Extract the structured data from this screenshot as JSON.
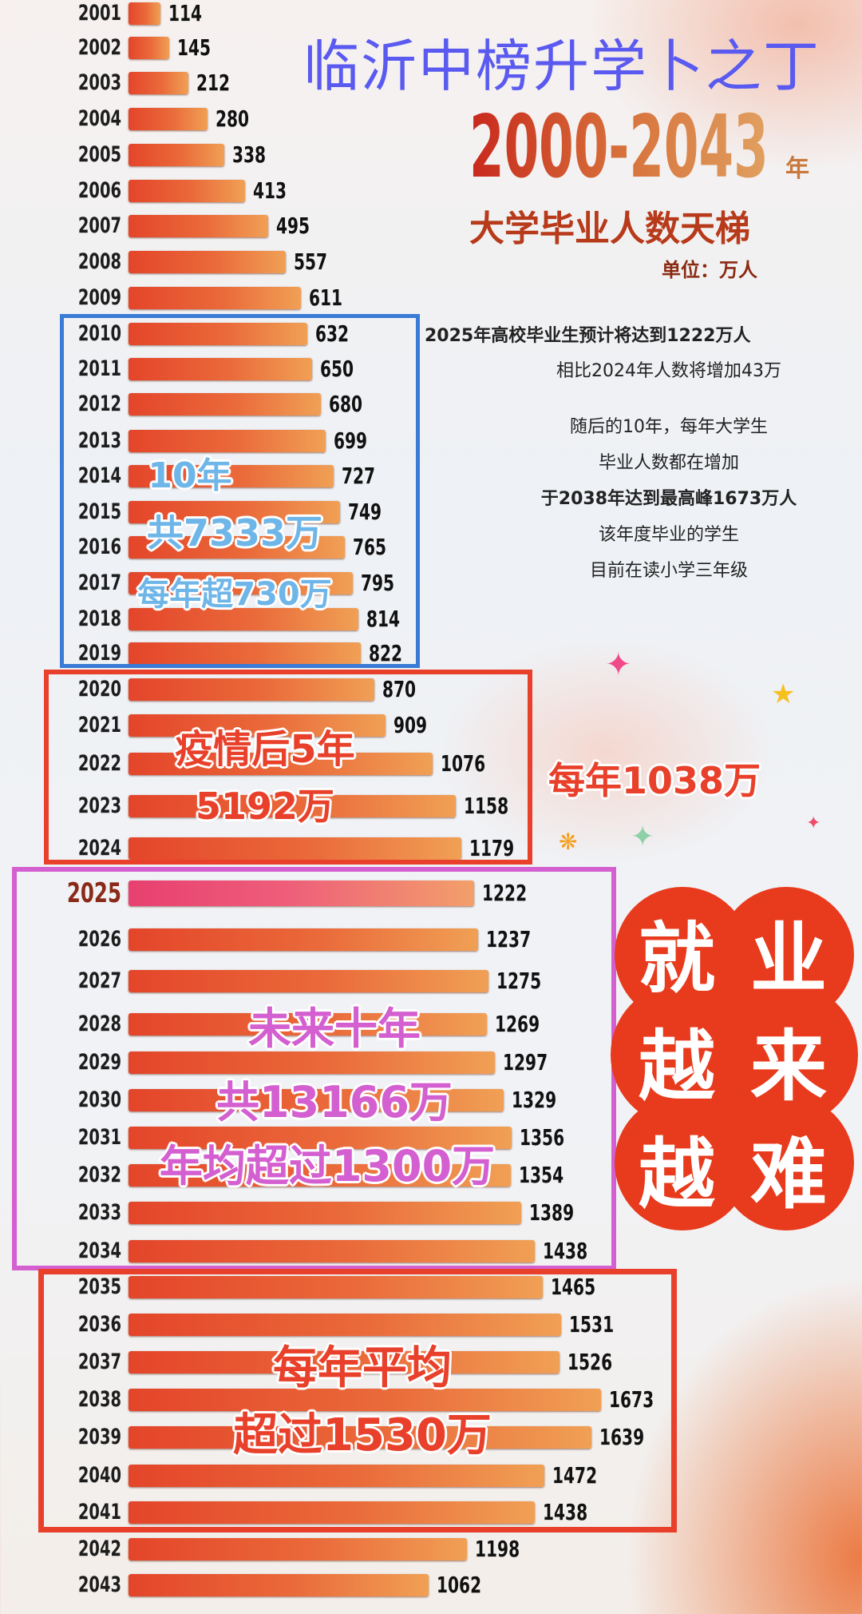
{
  "watermark": "临沂中榜升学卜之丁",
  "title": {
    "range": "2000-2043",
    "range_suffix": "年",
    "subtitle": "大学毕业人数天梯",
    "unit": "单位：万人"
  },
  "notes": [
    {
      "text": "2025年高校毕业生预计将达到1222万人",
      "bold": true
    },
    {
      "text": "相比2024年人数将增加43万",
      "bold": false
    },
    {
      "text": "随后的10年，每年大学生",
      "bold": false
    },
    {
      "text": "毕业人数都在增加",
      "bold": false
    },
    {
      "text": "于2038年达到最高峰1673万人",
      "bold": true
    },
    {
      "text": "该年度毕业的学生",
      "bold": false
    },
    {
      "text": "目前在读小学三年级",
      "bold": false
    }
  ],
  "annotations": {
    "blue": [
      "10年",
      "共7333万",
      "每年超730万"
    ],
    "red1": [
      "疫情后5年",
      "5192万"
    ],
    "red1_side": "每年1038万",
    "pink": [
      "未来十年",
      "共13166万",
      "年均超过1300万"
    ],
    "red2": [
      "每年平均",
      "超过1530万"
    ]
  },
  "badge": [
    "就",
    "业",
    "越",
    "来",
    "越",
    "难"
  ],
  "colors": {
    "bar_start": "#e4452a",
    "bar_end": "#f0a055",
    "highlight_bar": "#e84070",
    "blue_box": "#3a7bd5",
    "red_box": "#e8402a",
    "pink_box": "#d45fd0",
    "watermark": "#5a5af0",
    "badge": "#e83a1c"
  },
  "chart_data": {
    "type": "bar",
    "orientation": "horizontal",
    "title": "2000-2043年 大学毕业人数天梯",
    "unit": "万人",
    "highlight": "2025",
    "categories": [
      "2001",
      "2002",
      "2003",
      "2004",
      "2005",
      "2006",
      "2007",
      "2008",
      "2009",
      "2010",
      "2011",
      "2012",
      "2013",
      "2014",
      "2015",
      "2016",
      "2017",
      "2018",
      "2019",
      "2020",
      "2021",
      "2022",
      "2023",
      "2024",
      "2025",
      "2026",
      "2027",
      "2028",
      "2029",
      "2030",
      "2031",
      "2032",
      "2033",
      "2034",
      "2035",
      "2036",
      "2037",
      "2038",
      "2039",
      "2040",
      "2041",
      "2042",
      "2043"
    ],
    "values": [
      114,
      145,
      212,
      280,
      338,
      413,
      495,
      557,
      611,
      632,
      650,
      680,
      699,
      727,
      749,
      765,
      795,
      814,
      822,
      870,
      909,
      1076,
      1158,
      1179,
      1222,
      1237,
      1275,
      1269,
      1297,
      1329,
      1356,
      1354,
      1389,
      1438,
      1465,
      1531,
      1526,
      1673,
      1639,
      1472,
      1438,
      1198,
      1062
    ]
  }
}
